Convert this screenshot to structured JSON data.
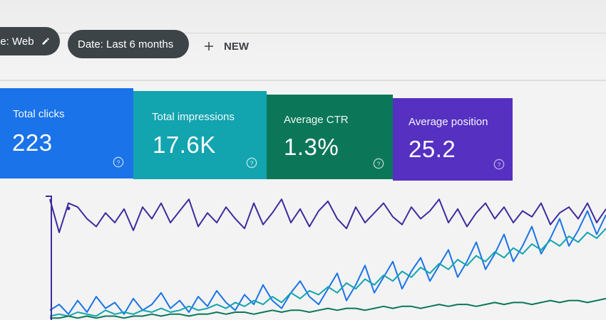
{
  "filters": {
    "chip1_label": "pe: Web",
    "chip2_label": "Date: Last 6 months",
    "new_label": "NEW"
  },
  "cards": [
    {
      "label": "Total clicks",
      "value": "223",
      "color": "#1a73e8"
    },
    {
      "label": "Total impressions",
      "value": "17.6K",
      "color": "#12a4af"
    },
    {
      "label": "Average CTR",
      "value": "1.3%",
      "color": "#0b7758"
    },
    {
      "label": "Average position",
      "value": "25.2",
      "color": "#5530c1"
    }
  ],
  "icons": [
    "pencil-icon",
    "plus-icon",
    "help-icon"
  ],
  "chart_data": {
    "type": "line",
    "x": [
      0,
      1,
      2,
      3,
      4,
      5,
      6,
      7,
      8,
      9,
      10,
      11,
      12,
      13,
      14,
      15,
      16,
      17,
      18,
      19,
      20,
      21,
      22,
      23,
      24,
      25,
      26,
      27,
      28,
      29,
      30,
      31,
      32,
      33,
      34,
      35,
      36,
      37,
      38,
      39,
      40,
      41,
      42,
      43,
      44,
      45,
      46,
      47,
      48,
      49,
      50,
      51,
      52,
      53,
      54,
      55,
      56,
      57,
      58,
      59,
      60
    ],
    "series": [
      {
        "color": "#3d2c9e",
        "values": [
          62,
          45,
          60,
          58,
          52,
          48,
          55,
          50,
          57,
          46,
          58,
          52,
          60,
          50,
          56,
          62,
          48,
          55,
          50,
          58,
          52,
          47,
          60,
          49,
          55,
          62,
          50,
          57,
          48,
          56,
          61,
          52,
          47,
          58,
          50,
          55,
          60,
          53,
          49,
          58,
          52,
          56,
          62,
          50,
          57,
          48,
          55,
          60,
          52,
          58,
          50,
          56,
          53,
          60,
          49,
          55,
          58,
          52,
          60,
          50,
          57
        ]
      },
      {
        "color": "#1a73e8",
        "values": [
          5,
          8,
          3,
          10,
          4,
          12,
          6,
          9,
          3,
          11,
          5,
          8,
          14,
          6,
          10,
          4,
          12,
          7,
          15,
          9,
          5,
          13,
          8,
          18,
          10,
          6,
          14,
          20,
          12,
          8,
          16,
          24,
          10,
          18,
          28,
          14,
          22,
          30,
          16,
          25,
          32,
          20,
          28,
          36,
          22,
          30,
          40,
          26,
          34,
          44,
          30,
          38,
          48,
          34,
          42,
          52,
          38,
          46,
          56,
          44,
          54
        ]
      },
      {
        "color": "#12a4af",
        "values": [
          2,
          3,
          2,
          4,
          3,
          2,
          5,
          3,
          4,
          3,
          5,
          4,
          6,
          4,
          5,
          7,
          5,
          6,
          8,
          6,
          9,
          7,
          10,
          8,
          12,
          9,
          14,
          11,
          15,
          13,
          17,
          14,
          19,
          16,
          21,
          18,
          23,
          20,
          25,
          22,
          27,
          24,
          29,
          26,
          31,
          28,
          33,
          30,
          35,
          32,
          37,
          34,
          39,
          36,
          41,
          38,
          43,
          40,
          45,
          42,
          47
        ]
      },
      {
        "color": "#0b7758",
        "values": [
          1,
          1,
          2,
          1,
          2,
          1,
          2,
          2,
          1,
          2,
          2,
          3,
          2,
          3,
          3,
          2,
          3,
          3,
          4,
          3,
          4,
          4,
          3,
          4,
          5,
          4,
          5,
          5,
          4,
          5,
          6,
          5,
          6,
          6,
          5,
          6,
          7,
          6,
          7,
          7,
          6,
          7,
          8,
          7,
          8,
          8,
          7,
          8,
          9,
          8,
          9,
          9,
          8,
          9,
          10,
          9,
          10,
          10,
          9,
          10,
          11
        ]
      }
    ]
  }
}
